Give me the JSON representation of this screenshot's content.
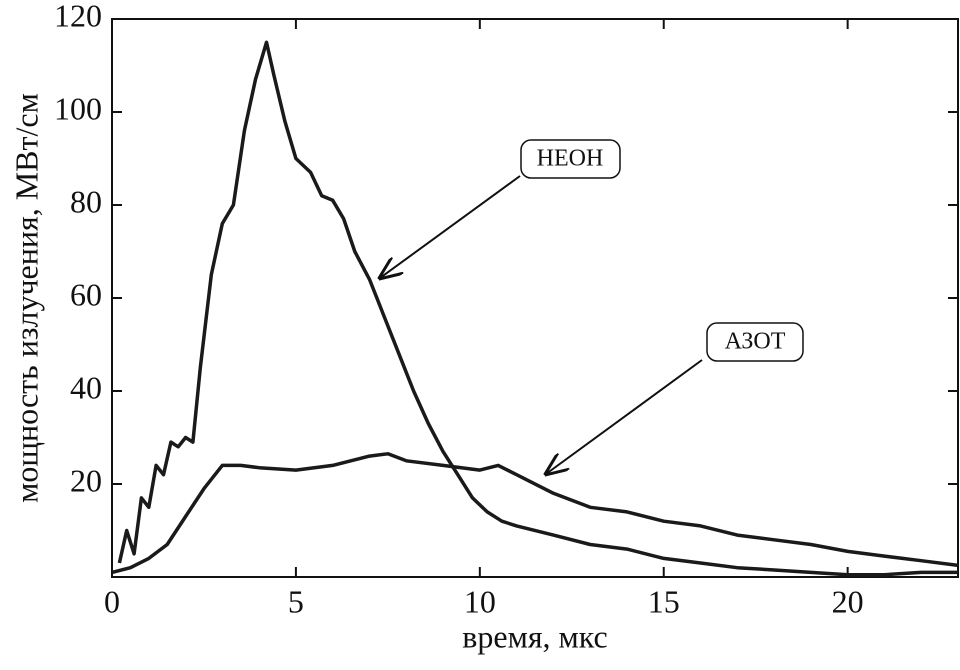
{
  "chart_data": {
    "type": "line",
    "x_label": "время, мкс",
    "y_label": "мощность излучения, МВт/см",
    "xlim": [
      0,
      23
    ],
    "xticks": [
      0,
      5,
      10,
      15,
      20
    ],
    "ylim": [
      0,
      120
    ],
    "yticks": [
      20,
      40,
      60,
      80,
      100,
      120
    ],
    "annotations": [
      "НЕОН",
      "АЗОТ"
    ],
    "series": [
      {
        "name": "НЕОН",
        "color": "#1a1a1a",
        "x": [
          0.2,
          0.4,
          0.6,
          0.8,
          1.0,
          1.2,
          1.4,
          1.6,
          1.8,
          2.0,
          2.2,
          2.4,
          2.7,
          3.0,
          3.3,
          3.6,
          3.9,
          4.2,
          4.4,
          4.7,
          5.0,
          5.4,
          5.7,
          6.0,
          6.3,
          6.6,
          7.0,
          7.4,
          7.8,
          8.2,
          8.6,
          9.0,
          9.4,
          9.8,
          10.2,
          10.6,
          11.0,
          12,
          13,
          14,
          15,
          16,
          17,
          18,
          19,
          20,
          21,
          22,
          23
        ],
        "values": [
          3,
          10,
          5,
          17,
          15,
          24,
          22,
          29,
          28,
          30,
          29,
          45,
          65,
          76,
          80,
          96,
          107,
          115,
          108,
          98,
          90,
          87,
          82,
          81,
          77,
          70,
          64,
          56,
          48,
          40,
          33,
          27,
          22,
          17,
          14,
          12,
          11,
          9,
          7,
          6,
          4,
          3,
          2,
          1.5,
          1,
          0.5,
          0.5,
          1,
          1
        ]
      },
      {
        "name": "АЗОТ",
        "color": "#1a1a1a",
        "x": [
          0,
          0.5,
          1,
          1.5,
          2,
          2.5,
          3,
          3.5,
          4,
          5,
          6,
          7,
          7.5,
          8,
          9,
          10,
          10.5,
          11,
          12,
          13,
          14,
          15,
          16,
          17,
          18,
          19,
          20,
          21,
          22,
          23
        ],
        "values": [
          1,
          2,
          4,
          7,
          13,
          19,
          24,
          24,
          23.5,
          23,
          24,
          26,
          26.5,
          25,
          24,
          23,
          24,
          22,
          18,
          15,
          14,
          12,
          11,
          9,
          8,
          7,
          5.5,
          4.5,
          3.5,
          2.5
        ]
      }
    ]
  }
}
